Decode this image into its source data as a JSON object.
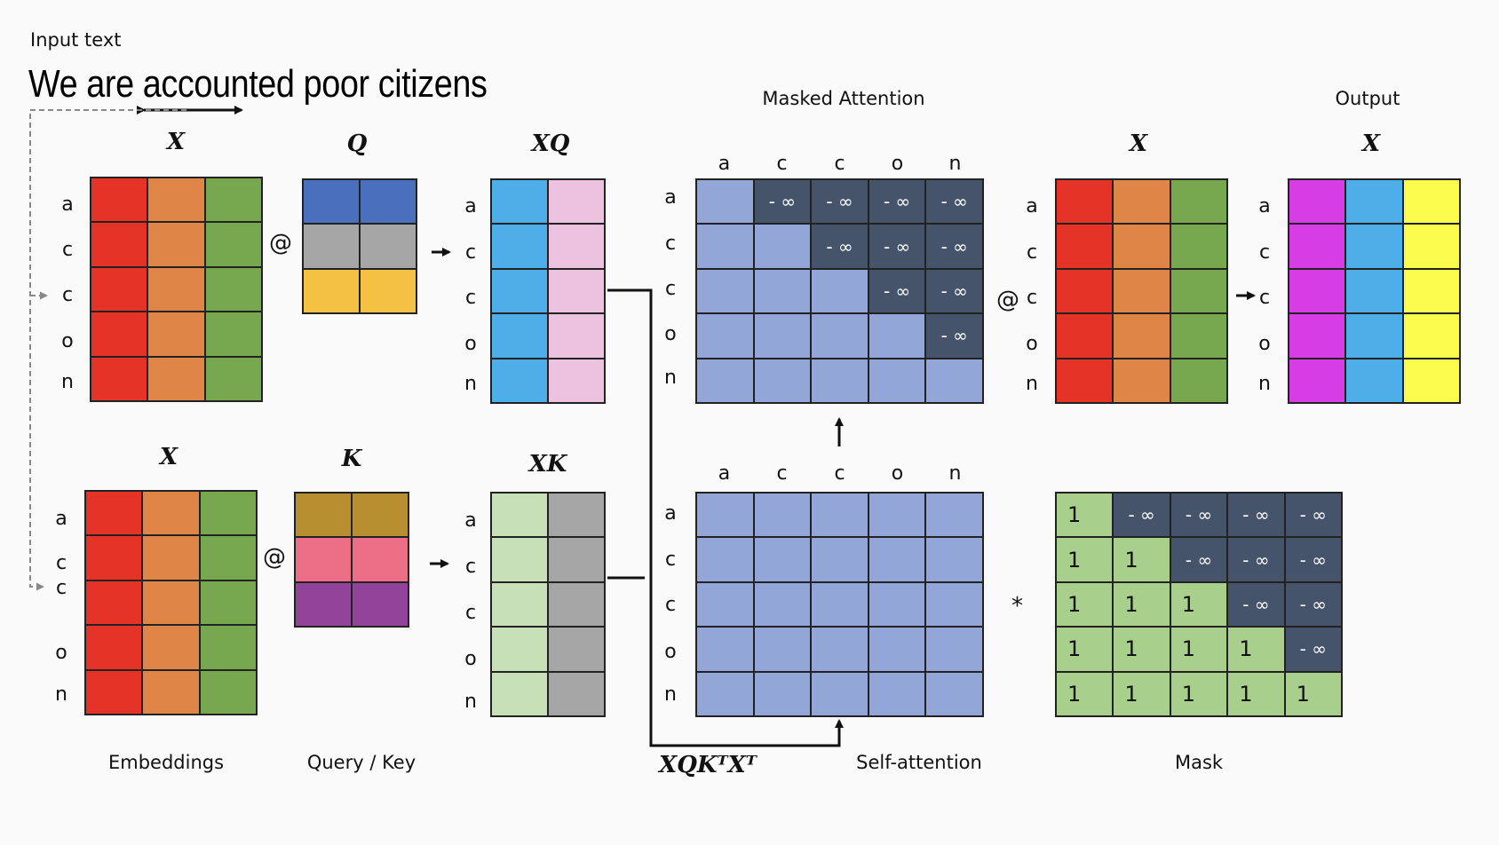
{
  "header": {
    "input_caption": "Input text",
    "sentence": "We are accounted poor citizens"
  },
  "section_titles": {
    "masked_attention": "Masked Attention",
    "output": "Output"
  },
  "matrix_labels": {
    "x_top": "X",
    "q": "Q",
    "xq": "XQ",
    "x_bottom": "X",
    "k": "K",
    "xk": "XK",
    "x_value": "X",
    "x_output": "X",
    "xqkx": "XQKᵀXᵀ"
  },
  "operators": {
    "matmul": "@",
    "multiply": "*"
  },
  "tokens": [
    "a",
    "c",
    "c",
    "o",
    "n"
  ],
  "cell_text": {
    "neg_inf": "- ∞",
    "one": "1"
  },
  "captions": {
    "embeddings": "Embeddings",
    "query_key": "Query / Key",
    "self_attention": "Self-attention",
    "mask": "Mask"
  },
  "colors": {
    "red": "#e63328",
    "orange": "#e08548",
    "green": "#77a84f",
    "blue": "#4a6fbd",
    "gray": "#a6a6a6",
    "yellow_gold": "#f4c144",
    "sky": "#4eaee8",
    "pink": "#ecc2de",
    "mustard": "#b78f31",
    "rose": "#ec6d86",
    "purple": "#91449a",
    "light_green": "#c8e0b8",
    "periwinkle": "#92a6d8",
    "slate": "#45546a",
    "mask_green": "#a8cf8c",
    "magenta": "#d63de5",
    "yellow": "#fbfb4c"
  }
}
